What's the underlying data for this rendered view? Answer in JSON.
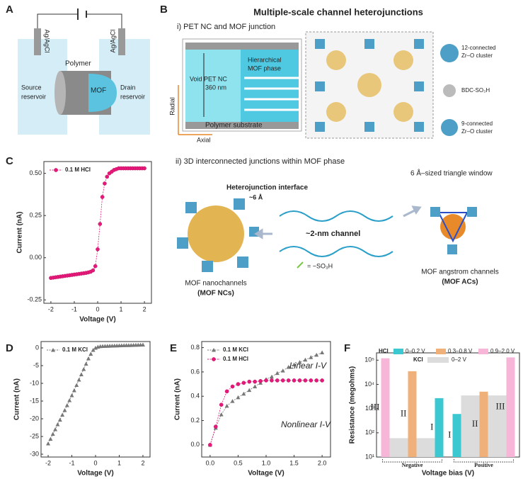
{
  "panel_labels": [
    "A",
    "B",
    "C",
    "D",
    "E",
    "F"
  ],
  "panel_a": {
    "electrode_left": "Ag/AgCl",
    "electrode_right": "Ag/AgCl",
    "source": [
      "Source",
      "reservoir"
    ],
    "drain": [
      "Drain",
      "reservoir"
    ],
    "polymer": "Polymer",
    "mof": "MOF"
  },
  "panel_b": {
    "title": "Multiple-scale channel heterojunctions",
    "subtitle": "i) PET NC and MOF junction",
    "void": [
      "Void PET NC",
      "360 nm"
    ],
    "mof_phase": [
      "Hierarchical",
      "MOF phase"
    ],
    "substrate": "Polymer substrate",
    "radial": "Radial",
    "axial": "Axial",
    "legend": [
      [
        "12-connected",
        "Zr–O cluster"
      ],
      [
        "BDC-SO₃H"
      ],
      [
        "9-connected",
        "Zr–O cluster"
      ]
    ]
  },
  "panel_b_ii": {
    "subtitle": "ii) 3D interconnected junctions within MOF phase",
    "window": "6 Å–sized triangle window",
    "interface": "Heterojunction interface",
    "interface_size": "~6 Å",
    "channel": "~2-nm channel",
    "sulfonate": "= −SO₃H",
    "ncs": [
      "MOF nanochannels",
      "(MOF NCs)"
    ],
    "acs": [
      "MOF angstrom channels",
      "(MOF ACs)"
    ]
  },
  "chart_data": [
    {
      "type": "line",
      "x_label": "Voltage (V)",
      "y_label": "Current (nA)",
      "x": [
        -2,
        -1.9,
        -1.8,
        -1.7,
        -1.6,
        -1.5,
        -1.4,
        -1.3,
        -1.2,
        -1.1,
        -1,
        -0.9,
        -0.8,
        -0.7,
        -0.6,
        -0.5,
        -0.4,
        -0.3,
        -0.2,
        -0.1,
        0,
        0.1,
        0.2,
        0.3,
        0.4,
        0.5,
        0.6,
        0.7,
        0.8,
        0.9,
        1,
        1.1,
        1.2,
        1.3,
        1.4,
        1.5,
        1.6,
        1.7,
        1.8,
        1.9,
        2
      ],
      "series": [
        {
          "name": "0.1 M HCl",
          "color": "#e6197a",
          "marker": "circle",
          "values": [
            -0.12,
            -0.118,
            -0.116,
            -0.114,
            -0.112,
            -0.11,
            -0.108,
            -0.106,
            -0.104,
            -0.102,
            -0.1,
            -0.098,
            -0.096,
            -0.094,
            -0.092,
            -0.09,
            -0.087,
            -0.083,
            -0.075,
            -0.05,
            0.05,
            0.2,
            0.36,
            0.44,
            0.48,
            0.5,
            0.51,
            0.52,
            0.525,
            0.53,
            0.53,
            0.53,
            0.53,
            0.53,
            0.53,
            0.53,
            0.53,
            0.53,
            0.53,
            0.53,
            0.53
          ]
        }
      ],
      "xlim": [
        -2.3,
        2.3
      ],
      "xticks": [
        -2,
        -1,
        0,
        1,
        2
      ],
      "ylim": [
        -0.27,
        0.57
      ],
      "yticks": [
        -0.25,
        {
          "value": 0,
          "label": "0.00"
        },
        0.25,
        {
          "value": 0.5,
          "label": "0.50"
        }
      ]
    },
    {
      "type": "line",
      "x_label": "Voltage (V)",
      "y_label": "Current (nA)",
      "x": [
        -2,
        -1.9,
        -1.8,
        -1.7,
        -1.6,
        -1.5,
        -1.4,
        -1.3,
        -1.2,
        -1.1,
        -1,
        -0.9,
        -0.8,
        -0.7,
        -0.6,
        -0.5,
        -0.4,
        -0.3,
        -0.2,
        -0.1,
        0,
        0.1,
        0.2,
        0.3,
        0.4,
        0.5,
        0.6,
        0.7,
        0.8,
        0.9,
        1,
        1.1,
        1.2,
        1.3,
        1.4,
        1.5,
        1.6,
        1.7,
        1.8,
        1.9,
        2
      ],
      "series": [
        {
          "name": "0.1 M KCl",
          "color": "#777777",
          "marker": "triangle",
          "values": [
            -27,
            -25.7,
            -24.3,
            -23,
            -21.6,
            -20.3,
            -18.9,
            -17.6,
            -16.2,
            -14.8,
            -13.4,
            -12,
            -10.5,
            -9,
            -7.5,
            -6,
            -4.5,
            -3,
            -1.7,
            -0.6,
            0,
            0.3,
            0.45,
            0.5,
            0.52,
            0.55,
            0.57,
            0.6,
            0.62,
            0.65,
            0.67,
            0.7,
            0.72,
            0.74,
            0.76,
            0.78,
            0.8,
            0.83,
            0.85,
            0.87,
            0.9
          ]
        }
      ],
      "xlim": [
        -2.3,
        2.3
      ],
      "xticks": [
        -2,
        -1,
        0,
        1,
        2
      ],
      "ylim": [
        -30.8,
        1.8
      ],
      "yticks": [
        -30,
        -25,
        -20,
        -15,
        -10,
        -5,
        0
      ]
    },
    {
      "type": "line",
      "x_label": "Voltage (V)",
      "y_label": "Current (nA)",
      "x": [
        0,
        0.1,
        0.2,
        0.3,
        0.4,
        0.5,
        0.6,
        0.7,
        0.8,
        0.9,
        1,
        1.1,
        1.2,
        1.3,
        1.4,
        1.5,
        1.6,
        1.7,
        1.8,
        1.9,
        2
      ],
      "series": [
        {
          "name": "0.1 M KCl",
          "color": "#777777",
          "marker": "triangle",
          "values": [
            0,
            0.14,
            0.25,
            0.32,
            0.36,
            0.39,
            0.42,
            0.45,
            0.48,
            0.51,
            0.54,
            0.56,
            0.59,
            0.61,
            0.64,
            0.66,
            0.68,
            0.7,
            0.72,
            0.74,
            0.76
          ]
        },
        {
          "name": "0.1 M HCl",
          "color": "#e6197a",
          "marker": "circle",
          "values": [
            0,
            0.15,
            0.33,
            0.44,
            0.48,
            0.5,
            0.51,
            0.52,
            0.52,
            0.525,
            0.53,
            0.53,
            0.53,
            0.53,
            0.53,
            0.53,
            0.53,
            0.53,
            0.53,
            0.53,
            0.53
          ]
        }
      ],
      "annotations": [
        "Linear I-V",
        "Nonlinear I-V"
      ],
      "xlim": [
        -0.15,
        2.15
      ],
      "xticks": [
        {
          "value": 0,
          "label": "0.0"
        },
        0.5,
        {
          "value": 1,
          "label": "1.0"
        },
        1.5,
        {
          "value": 2,
          "label": "2.0"
        }
      ],
      "ylim": [
        -0.1,
        0.85
      ],
      "yticks": [
        {
          "value": 0,
          "label": "0.0"
        },
        0.2,
        0.4,
        0.6,
        0.8
      ]
    },
    {
      "type": "bar",
      "log_scale": true,
      "x_label": "Voltage bias (V)",
      "y_label": "Resistance (megohms)",
      "categories": [
        "Negative",
        "Positive"
      ],
      "legend_titles": [
        "HCl",
        "KCl"
      ],
      "series": [
        {
          "name": "0–0.2 V",
          "color": "#3cc8d0",
          "tag": "I",
          "values": [
            2700,
            600
          ]
        },
        {
          "name": "0.3–0.8 V",
          "color": "#f0b07a",
          "tag": "II",
          "values": [
            35000,
            5000
          ]
        },
        {
          "name": "0.9–2.0 V",
          "color": "#f7b6d8",
          "tag": "III",
          "values": [
            120000,
            130000
          ]
        },
        {
          "name": "0–2 V",
          "color": "#dcdcdc",
          "values": [
            60,
            3500
          ]
        }
      ],
      "ylim": [
        10,
        200000
      ],
      "yticks": [
        {
          "value": 10,
          "label": "10¹"
        },
        {
          "value": 100,
          "label": "10²"
        },
        {
          "value": 1000,
          "label": "10³"
        },
        {
          "value": 10000,
          "label": "10⁴"
        },
        {
          "value": 100000,
          "label": "10⁵"
        }
      ]
    }
  ]
}
